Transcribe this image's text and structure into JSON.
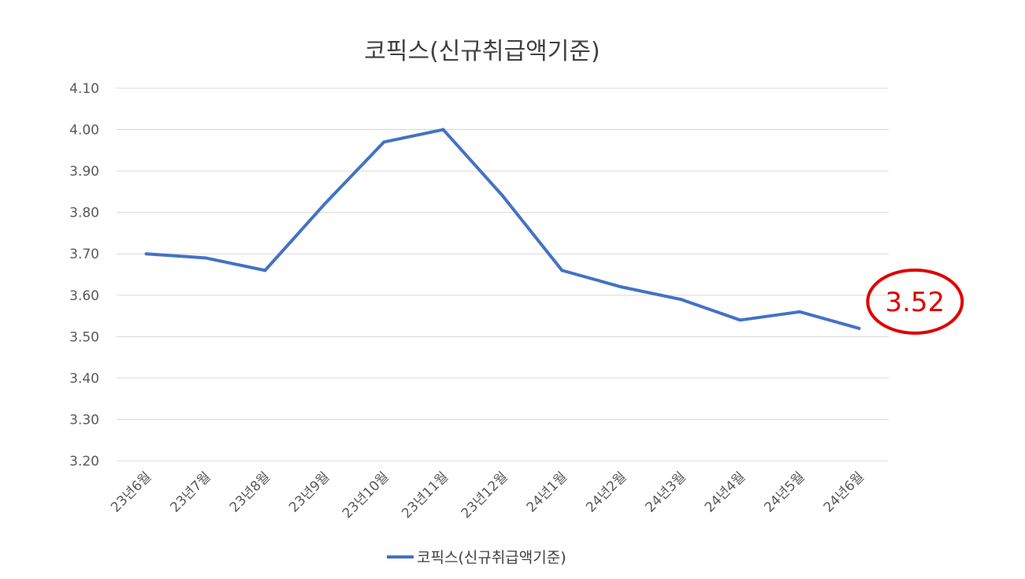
{
  "chart_data": {
    "type": "line",
    "title": "코픽스(신규취급액기준)",
    "categories": [
      "23년6월",
      "23년7월",
      "23년8월",
      "23년9월",
      "23년10월",
      "23년11월",
      "23년12월",
      "24년1월",
      "24년2월",
      "24년3월",
      "24년4월",
      "24년5월",
      "24년6월"
    ],
    "series": [
      {
        "name": "코픽스(신규취급액기준)",
        "color": "#4472C4",
        "values": [
          3.7,
          3.69,
          3.66,
          3.82,
          3.97,
          4.0,
          3.84,
          3.66,
          3.62,
          3.59,
          3.54,
          3.56,
          3.52
        ]
      }
    ],
    "ylim": [
      3.2,
      4.1
    ],
    "ytick_labels": [
      "3.20",
      "3.30",
      "3.40",
      "3.50",
      "3.60",
      "3.70",
      "3.80",
      "3.90",
      "4.00",
      "4.10"
    ],
    "xlabel": "",
    "ylabel": "",
    "grid": true,
    "legend_position": "bottom",
    "annotation": {
      "text": "3.52",
      "color": "#E00000",
      "target_category": "24년6월"
    }
  }
}
